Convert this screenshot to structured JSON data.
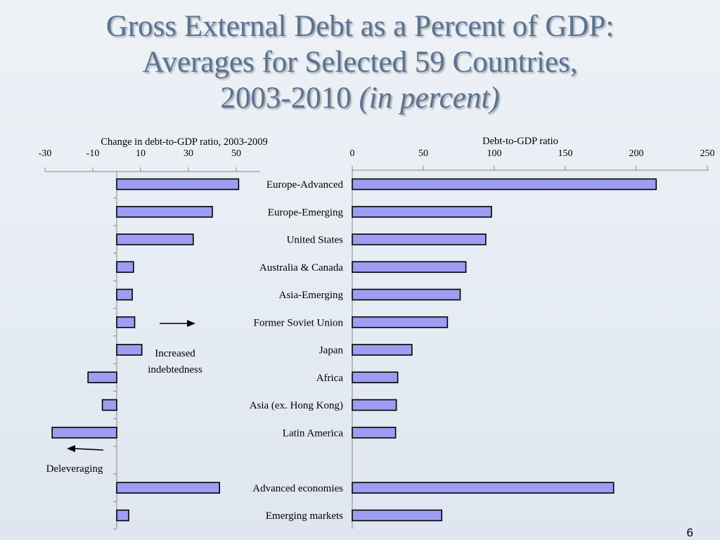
{
  "slide": {
    "title_line1": "Gross External Debt as a Percent of GDP:",
    "title_line2": "Averages for Selected 59 Countries,",
    "title_line3_plain": "2003-2010 ",
    "title_line3_italic": "(in percent)",
    "page_number": "6"
  },
  "colors": {
    "bar_fill": "#9d9df2",
    "bar_stroke": "#000000",
    "title": "#5a7392"
  },
  "chart_data": [
    {
      "type": "bar",
      "orientation": "horizontal",
      "title": "Change in debt-to-GDP ratio, 2003-2009",
      "xlim": [
        -30,
        60
      ],
      "ticks": [
        -30,
        -10,
        10,
        30,
        50
      ],
      "categories": [
        "Europe-Advanced",
        "Europe-Emerging",
        "United States",
        "Australia & Canada",
        "Asia-Emerging",
        "Former Soviet Union",
        "Japan",
        "Africa",
        "Asia  (ex. Hong Kong)",
        "Latin America",
        "",
        "Advanced economies",
        "Emerging markets"
      ],
      "values": [
        51,
        40,
        32,
        7,
        6.5,
        7.5,
        10.5,
        -12,
        -6,
        -27,
        null,
        43,
        5
      ],
      "annotations": [
        "Increased indebtedness",
        "Deleveraging"
      ]
    },
    {
      "type": "bar",
      "orientation": "horizontal",
      "title": "Debt-to-GDP ratio",
      "xlim": [
        0,
        250
      ],
      "ticks": [
        0,
        50,
        100,
        150,
        200,
        250
      ],
      "categories": [
        "Europe-Advanced",
        "Europe-Emerging",
        "United States",
        "Australia & Canada",
        "Asia-Emerging",
        "Former Soviet Union",
        "Japan",
        "Africa",
        "Asia  (ex. Hong Kong)",
        "Latin America",
        "",
        "Advanced economies",
        "Emerging markets"
      ],
      "values": [
        214,
        98,
        94,
        80,
        76,
        67,
        42,
        32,
        31,
        30.5,
        null,
        184,
        63
      ]
    }
  ]
}
